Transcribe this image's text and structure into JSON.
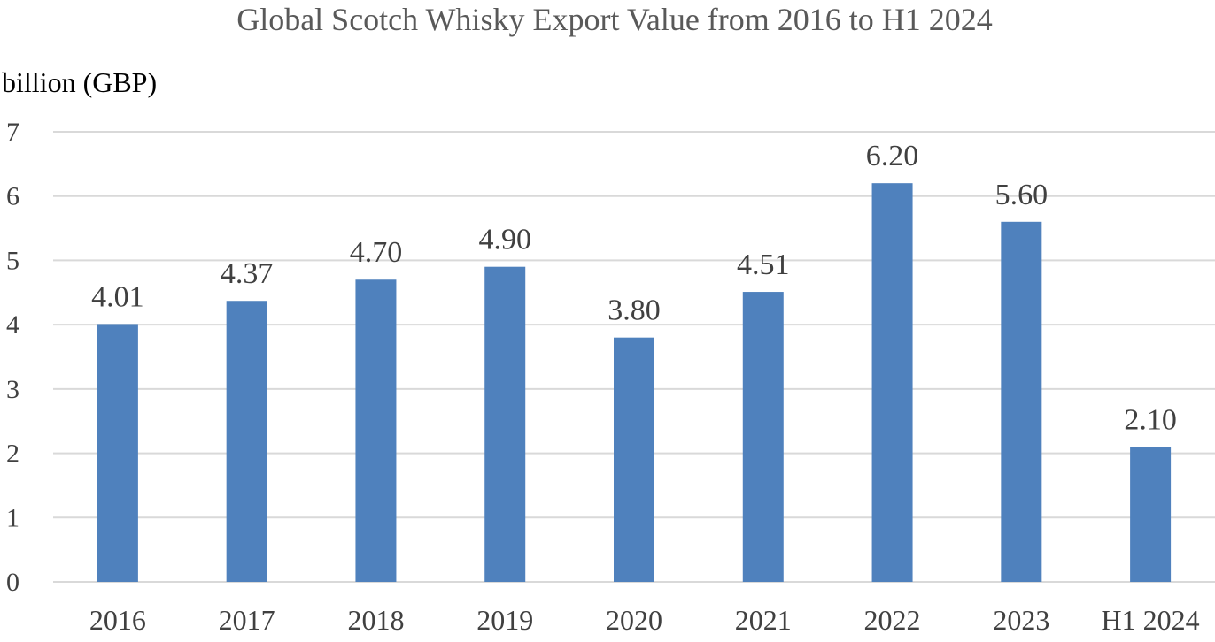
{
  "chart_data": {
    "type": "bar",
    "title": "Global Scotch Whisky Export Value from 2016 to H1 2024",
    "ylabel": "billion (GBP)",
    "xlabel": "",
    "categories": [
      "2016",
      "2017",
      "2018",
      "2019",
      "2020",
      "2021",
      "2022",
      "2023",
      "H1 2024"
    ],
    "values": [
      4.01,
      4.37,
      4.7,
      4.9,
      3.8,
      4.51,
      6.2,
      5.6,
      2.1
    ],
    "data_labels": [
      "4.01",
      "4.37",
      "4.70",
      "4.90",
      "3.80",
      "4.51",
      "6.20",
      "5.60",
      "2.10"
    ],
    "yticks": [
      "0",
      "1",
      "2",
      "3",
      "4",
      "5",
      "6",
      "7"
    ],
    "ylim": [
      0,
      7
    ],
    "grid": true,
    "legend": "none",
    "bar_color": "#4f81bd"
  }
}
